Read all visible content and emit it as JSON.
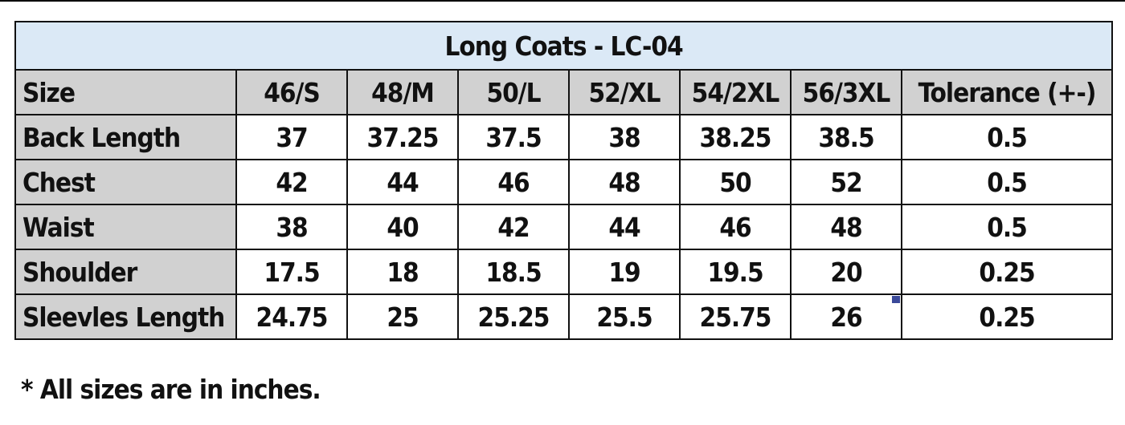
{
  "title": "Long Coats - LC-04",
  "header": {
    "label": "Size",
    "sizes": [
      "46/S",
      "48/M",
      "50/L",
      "52/XL",
      "54/2XL",
      "56/3XL"
    ],
    "tolerance": "Tolerance (+-)"
  },
  "rows": [
    {
      "label": "Back Length",
      "values": [
        "37",
        "37.25",
        "37.5",
        "38",
        "38.25",
        "38.5"
      ],
      "tolerance": "0.5"
    },
    {
      "label": "Chest",
      "values": [
        "42",
        "44",
        "46",
        "48",
        "50",
        "52"
      ],
      "tolerance": "0.5"
    },
    {
      "label": "Waist",
      "values": [
        "38",
        "40",
        "42",
        "44",
        "46",
        "48"
      ],
      "tolerance": "0.5"
    },
    {
      "label": "Shoulder",
      "values": [
        "17.5",
        "18",
        "18.5",
        "19",
        "19.5",
        "20"
      ],
      "tolerance": "0.25"
    },
    {
      "label": "Sleevles Length",
      "values": [
        "24.75",
        "25",
        "25.25",
        "25.5",
        "25.75",
        "26"
      ],
      "tolerance": "0.25"
    }
  ],
  "note": "* All sizes are in inches.",
  "colors": {
    "title_bg": "#dbe9f6",
    "label_bg": "#d1d1d1",
    "marker": "#3b4a9a"
  }
}
